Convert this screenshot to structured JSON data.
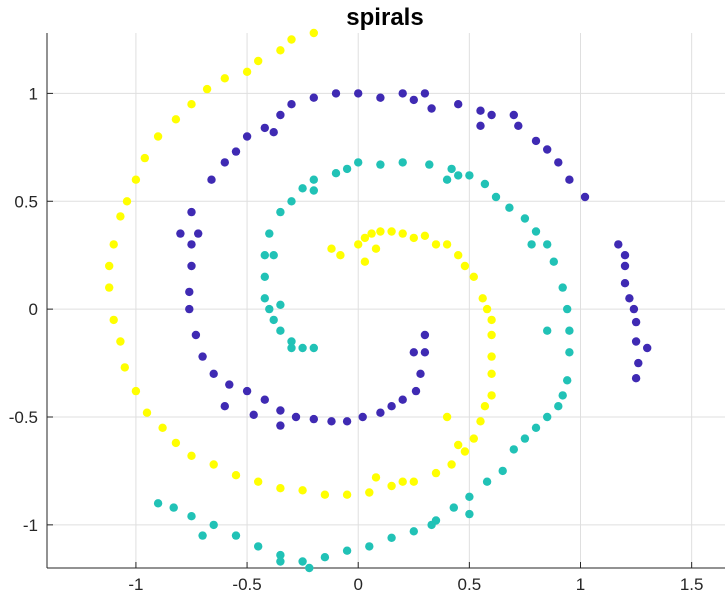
{
  "chart_data": {
    "type": "scatter",
    "title": "spirals",
    "xlabel": "",
    "ylabel": "",
    "xlim": [
      -1.4,
      1.65
    ],
    "ylim": [
      -1.2,
      1.28
    ],
    "xticks": [
      -1,
      -0.5,
      0,
      0.5,
      1,
      1.5
    ],
    "xtick_labels": [
      "-1",
      "-0.5",
      "0",
      "0.5",
      "1",
      "1.5"
    ],
    "yticks": [
      -1,
      -0.5,
      0,
      0.5,
      1
    ],
    "ytick_labels": [
      "-1",
      "-0.5",
      "0",
      "0.5",
      "1"
    ],
    "grid": true,
    "legend": "none",
    "colors": [
      "#ffff00",
      "#3f2ab3",
      "#21c2b6"
    ],
    "series": [
      {
        "color": "#ffff00",
        "points": [
          [
            0.0,
            0.3
          ],
          [
            0.03,
            0.33
          ],
          [
            0.06,
            0.35
          ],
          [
            0.1,
            0.36
          ],
          [
            0.15,
            0.36
          ],
          [
            0.2,
            0.35
          ],
          [
            0.25,
            0.33
          ],
          [
            0.3,
            0.34
          ],
          [
            0.35,
            0.3
          ],
          [
            0.4,
            0.3
          ],
          [
            0.45,
            0.25
          ],
          [
            0.48,
            0.2
          ],
          [
            0.52,
            0.15
          ],
          [
            0.56,
            0.05
          ],
          [
            0.58,
            0.0
          ],
          [
            0.6,
            -0.05
          ],
          [
            0.6,
            -0.12
          ],
          [
            0.6,
            -0.22
          ],
          [
            0.6,
            -0.3
          ],
          [
            0.6,
            -0.4
          ],
          [
            0.57,
            -0.45
          ],
          [
            0.55,
            -0.52
          ],
          [
            0.52,
            -0.6
          ],
          [
            0.48,
            -0.66
          ],
          [
            0.42,
            -0.72
          ],
          [
            0.35,
            -0.76
          ],
          [
            0.25,
            -0.8
          ],
          [
            0.15,
            -0.82
          ],
          [
            0.05,
            -0.85
          ],
          [
            -0.05,
            -0.86
          ],
          [
            -0.15,
            -0.86
          ],
          [
            -0.25,
            -0.84
          ],
          [
            -0.35,
            -0.83
          ],
          [
            -0.45,
            -0.8
          ],
          [
            -0.55,
            -0.77
          ],
          [
            -0.65,
            -0.72
          ],
          [
            -0.75,
            -0.68
          ],
          [
            -0.82,
            -0.62
          ],
          [
            -0.88,
            -0.55
          ],
          [
            -0.95,
            -0.48
          ],
          [
            -1.0,
            -0.38
          ],
          [
            -1.05,
            -0.27
          ],
          [
            -1.07,
            -0.15
          ],
          [
            -1.1,
            -0.05
          ],
          [
            -1.12,
            0.1
          ],
          [
            -1.12,
            0.2
          ],
          [
            -1.1,
            0.3
          ],
          [
            -1.07,
            0.43
          ],
          [
            -1.04,
            0.5
          ],
          [
            -1.0,
            0.6
          ],
          [
            -0.96,
            0.7
          ],
          [
            -0.9,
            0.8
          ],
          [
            -0.82,
            0.88
          ],
          [
            -0.75,
            0.95
          ],
          [
            -0.68,
            1.02
          ],
          [
            -0.6,
            1.07
          ],
          [
            -0.5,
            1.1
          ],
          [
            -0.45,
            1.15
          ],
          [
            -0.35,
            1.2
          ],
          [
            -0.3,
            1.25
          ],
          [
            -0.2,
            1.28
          ],
          [
            -0.12,
            0.28
          ],
          [
            -0.08,
            0.25
          ],
          [
            0.03,
            0.22
          ],
          [
            0.08,
            0.28
          ],
          [
            0.4,
            -0.5
          ],
          [
            0.45,
            -0.63
          ],
          [
            0.2,
            -0.8
          ],
          [
            0.08,
            -0.78
          ]
        ]
      },
      {
        "color": "#3f2ab3",
        "points": [
          [
            0.3,
            -0.12
          ],
          [
            0.3,
            -0.2
          ],
          [
            0.28,
            -0.3
          ],
          [
            0.26,
            -0.38
          ],
          [
            0.2,
            -0.42
          ],
          [
            0.15,
            -0.45
          ],
          [
            0.1,
            -0.48
          ],
          [
            0.02,
            -0.5
          ],
          [
            -0.05,
            -0.52
          ],
          [
            -0.12,
            -0.52
          ],
          [
            -0.2,
            -0.51
          ],
          [
            -0.28,
            -0.5
          ],
          [
            -0.35,
            -0.47
          ],
          [
            -0.42,
            -0.42
          ],
          [
            -0.5,
            -0.38
          ],
          [
            -0.58,
            -0.35
          ],
          [
            -0.65,
            -0.3
          ],
          [
            -0.7,
            -0.22
          ],
          [
            -0.73,
            -0.12
          ],
          [
            -0.76,
            0.0
          ],
          [
            -0.76,
            0.08
          ],
          [
            -0.75,
            0.2
          ],
          [
            -0.75,
            0.3
          ],
          [
            -0.72,
            0.35
          ],
          [
            -0.75,
            0.45
          ],
          [
            -0.66,
            0.6
          ],
          [
            -0.6,
            0.68
          ],
          [
            -0.55,
            0.73
          ],
          [
            -0.5,
            0.8
          ],
          [
            -0.42,
            0.84
          ],
          [
            -0.35,
            0.9
          ],
          [
            -0.3,
            0.95
          ],
          [
            -0.2,
            0.98
          ],
          [
            -0.1,
            1.0
          ],
          [
            0.0,
            1.0
          ],
          [
            0.1,
            0.98
          ],
          [
            0.2,
            1.0
          ],
          [
            0.3,
            1.0
          ],
          [
            0.45,
            0.95
          ],
          [
            0.55,
            0.92
          ],
          [
            0.6,
            0.9
          ],
          [
            0.72,
            0.85
          ],
          [
            0.8,
            0.78
          ],
          [
            0.85,
            0.74
          ],
          [
            0.9,
            0.68
          ],
          [
            0.95,
            0.6
          ],
          [
            1.02,
            0.52
          ],
          [
            1.17,
            0.3
          ],
          [
            1.2,
            0.25
          ],
          [
            1.2,
            0.2
          ],
          [
            1.2,
            0.12
          ],
          [
            1.22,
            0.05
          ],
          [
            1.24,
            0.0
          ],
          [
            1.25,
            -0.06
          ],
          [
            1.25,
            -0.15
          ],
          [
            1.26,
            -0.25
          ],
          [
            1.25,
            -0.32
          ],
          [
            1.3,
            -0.18
          ],
          [
            0.25,
            -0.2
          ],
          [
            -0.8,
            0.35
          ],
          [
            -0.6,
            -0.45
          ],
          [
            -0.47,
            -0.49
          ],
          [
            -0.35,
            -0.54
          ],
          [
            0.55,
            0.85
          ],
          [
            0.7,
            0.9
          ],
          [
            -0.38,
            0.82
          ],
          [
            0.33,
            0.93
          ],
          [
            0.25,
            0.97
          ]
        ]
      },
      {
        "color": "#21c2b6",
        "points": [
          [
            -0.2,
            -0.18
          ],
          [
            -0.25,
            -0.18
          ],
          [
            -0.3,
            -0.15
          ],
          [
            -0.35,
            -0.1
          ],
          [
            -0.38,
            -0.05
          ],
          [
            -0.4,
            0.0
          ],
          [
            -0.42,
            0.05
          ],
          [
            -0.42,
            0.15
          ],
          [
            -0.42,
            0.25
          ],
          [
            -0.4,
            0.35
          ],
          [
            -0.35,
            0.45
          ],
          [
            -0.3,
            0.5
          ],
          [
            -0.25,
            0.56
          ],
          [
            -0.2,
            0.6
          ],
          [
            -0.1,
            0.63
          ],
          [
            -0.05,
            0.65
          ],
          [
            0.0,
            0.68
          ],
          [
            0.1,
            0.67
          ],
          [
            0.2,
            0.68
          ],
          [
            0.32,
            0.67
          ],
          [
            0.42,
            0.65
          ],
          [
            0.5,
            0.62
          ],
          [
            0.57,
            0.58
          ],
          [
            0.62,
            0.52
          ],
          [
            0.68,
            0.47
          ],
          [
            0.75,
            0.42
          ],
          [
            0.8,
            0.36
          ],
          [
            0.85,
            0.3
          ],
          [
            0.88,
            0.22
          ],
          [
            0.92,
            0.1
          ],
          [
            0.94,
            0.0
          ],
          [
            0.95,
            -0.1
          ],
          [
            0.95,
            -0.2
          ],
          [
            0.94,
            -0.33
          ],
          [
            0.92,
            -0.4
          ],
          [
            0.9,
            -0.45
          ],
          [
            0.85,
            -0.5
          ],
          [
            0.8,
            -0.55
          ],
          [
            0.75,
            -0.6
          ],
          [
            0.7,
            -0.65
          ],
          [
            0.65,
            -0.75
          ],
          [
            0.58,
            -0.8
          ],
          [
            0.5,
            -0.87
          ],
          [
            0.43,
            -0.92
          ],
          [
            0.35,
            -0.98
          ],
          [
            0.25,
            -1.03
          ],
          [
            0.15,
            -1.06
          ],
          [
            0.05,
            -1.1
          ],
          [
            -0.05,
            -1.12
          ],
          [
            -0.15,
            -1.15
          ],
          [
            -0.25,
            -1.17
          ],
          [
            -0.35,
            -1.14
          ],
          [
            -0.45,
            -1.1
          ],
          [
            -0.55,
            -1.05
          ],
          [
            -0.65,
            -1.0
          ],
          [
            -0.75,
            -0.96
          ],
          [
            -0.83,
            -0.92
          ],
          [
            -0.9,
            -0.9
          ],
          [
            -0.3,
            -0.18
          ],
          [
            -0.35,
            0.02
          ],
          [
            -0.38,
            0.25
          ],
          [
            -0.2,
            0.55
          ],
          [
            0.45,
            0.62
          ],
          [
            0.78,
            0.3
          ],
          [
            0.85,
            -0.1
          ],
          [
            0.5,
            -0.95
          ],
          [
            -0.35,
            -1.17
          ],
          [
            -0.22,
            -1.2
          ],
          [
            0.33,
            -1.0
          ],
          [
            0.4,
            0.6
          ],
          [
            -0.7,
            -1.05
          ]
        ]
      }
    ]
  }
}
